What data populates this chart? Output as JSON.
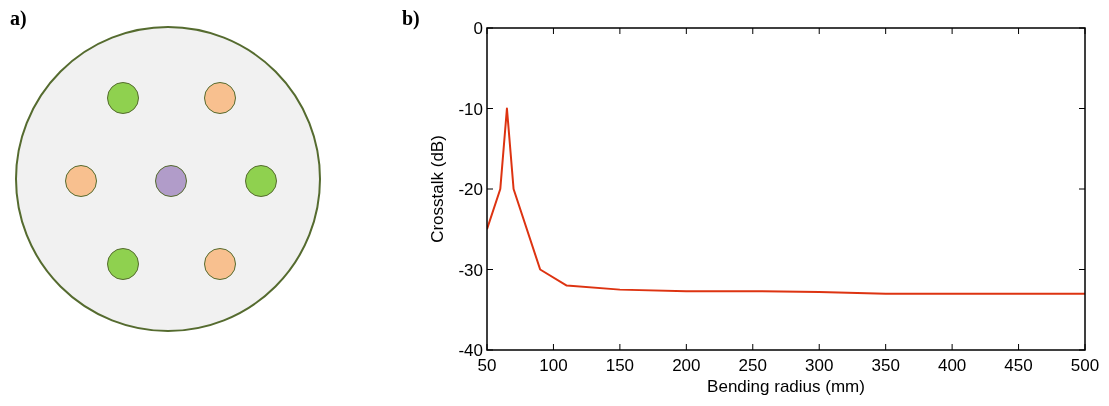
{
  "chart_data": {
    "type": "line",
    "xlabel": "Bending radius (mm)",
    "ylabel": "Crosstalk (dB)",
    "annotations": [
      "a)",
      "b)"
    ],
    "x": [
      50,
      60,
      65,
      70,
      90,
      110,
      150,
      200,
      250,
      300,
      350,
      400,
      450,
      500
    ],
    "series": [
      {
        "color": "#dd3311",
        "values": [
          -25,
          -20,
          -10,
          -20,
          -30,
          -32,
          -32.5,
          -32.7,
          -32.7,
          -32.8,
          -33,
          -33,
          -33,
          -33
        ]
      }
    ],
    "xlim": [
      50,
      500
    ],
    "xticks": [
      50,
      100,
      150,
      200,
      250,
      300,
      350,
      400,
      450,
      500
    ],
    "ylim": [
      -40,
      0
    ],
    "yticks": [
      -40,
      -30,
      -20,
      -10,
      0
    ],
    "grid": false,
    "marker": "none",
    "line_style": "solid"
  }
}
